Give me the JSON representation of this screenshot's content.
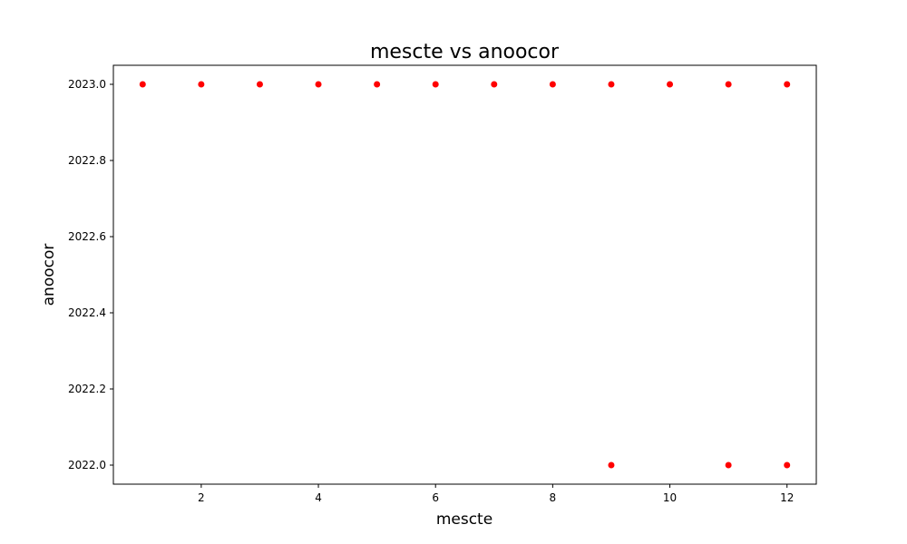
{
  "chart_data": {
    "type": "scatter",
    "title": "mescte vs anoocor",
    "xlabel": "mescte",
    "ylabel": "anoocor",
    "xlim": [
      0.5,
      12.5
    ],
    "ylim": [
      2021.95,
      2023.05
    ],
    "xticks": [
      2,
      4,
      6,
      8,
      10,
      12
    ],
    "yticks": [
      2022.0,
      2022.2,
      2022.4,
      2022.6,
      2022.8,
      2023.0
    ],
    "grid": false,
    "marker_color": "#ff0000",
    "series": [
      {
        "points": [
          {
            "x": 1,
            "y": 2023.0
          },
          {
            "x": 2,
            "y": 2023.0
          },
          {
            "x": 3,
            "y": 2023.0
          },
          {
            "x": 4,
            "y": 2023.0
          },
          {
            "x": 5,
            "y": 2023.0
          },
          {
            "x": 6,
            "y": 2023.0
          },
          {
            "x": 7,
            "y": 2023.0
          },
          {
            "x": 8,
            "y": 2023.0
          },
          {
            "x": 9,
            "y": 2023.0
          },
          {
            "x": 10,
            "y": 2023.0
          },
          {
            "x": 11,
            "y": 2023.0
          },
          {
            "x": 12,
            "y": 2023.0
          },
          {
            "x": 9,
            "y": 2022.0
          },
          {
            "x": 11,
            "y": 2022.0
          },
          {
            "x": 12,
            "y": 2022.0
          }
        ]
      }
    ]
  }
}
